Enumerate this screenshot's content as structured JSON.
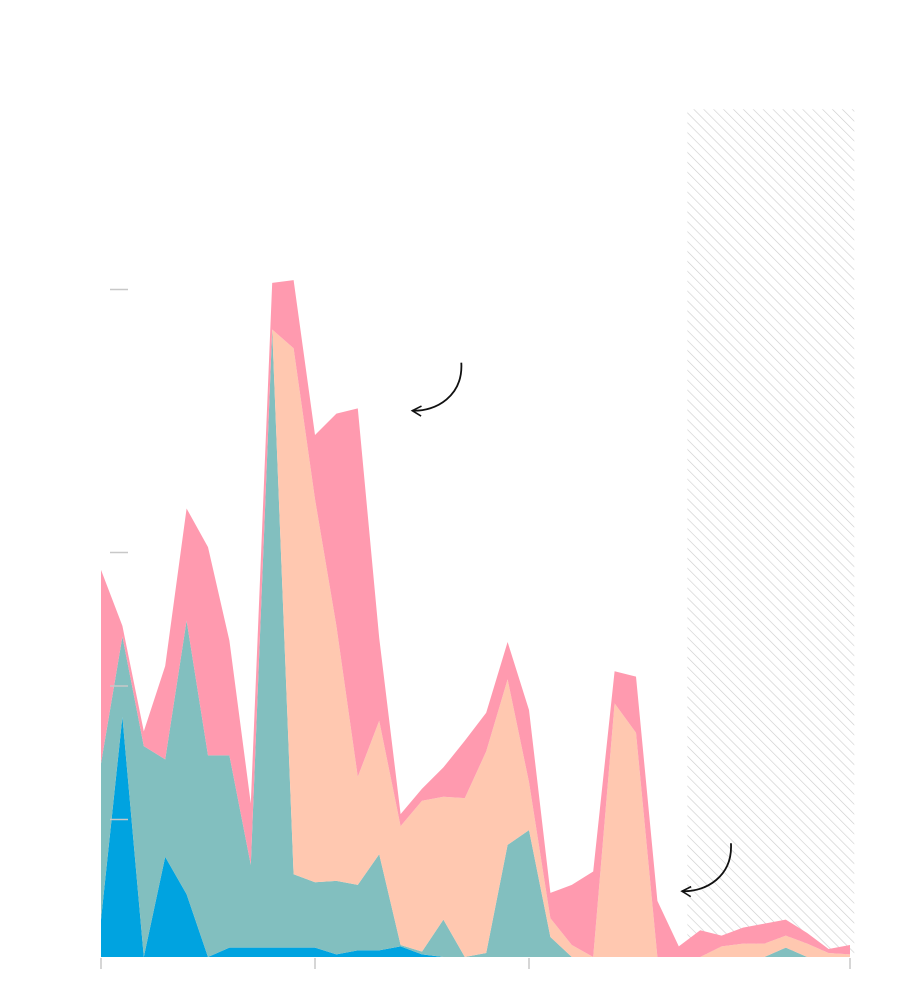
{
  "colors": {
    "background": "#ffffff",
    "tick": "#c8c8c8",
    "hatch": "#cccccc",
    "arrow": "#111111"
  },
  "chart_data": {
    "type": "area",
    "stacked": true,
    "title": "",
    "xlabel": "",
    "ylabel": "",
    "grid": false,
    "legend": "none",
    "x": [
      0,
      1,
      2,
      3,
      4,
      5,
      6,
      7,
      8,
      9,
      10,
      11,
      12,
      13,
      14,
      15,
      16,
      17,
      18,
      19,
      20,
      21,
      22,
      23,
      24,
      25,
      26,
      27,
      28,
      29,
      30,
      31,
      32,
      33,
      34,
      35
    ],
    "xlim": [
      0,
      35
    ],
    "ylim": [
      0,
      6.2
    ],
    "xticks": [
      0,
      10,
      20,
      35
    ],
    "yticks": [
      1.03,
      2.03,
      3.03,
      5.0
    ],
    "series": [
      {
        "color": "#00a3e0",
        "values": [
          0.28,
          1.8,
          0,
          0.75,
          0.47,
          0,
          0.07,
          0.07,
          0.07,
          0.07,
          0.07,
          0.02,
          0.05,
          0.05,
          0.08,
          0.02,
          0,
          0,
          0,
          0,
          0,
          0,
          0,
          0,
          0,
          0,
          0,
          0,
          0,
          0,
          0,
          0,
          0,
          0,
          0,
          0
        ]
      },
      {
        "color": "#82bfbf",
        "values": [
          1.17,
          0.6,
          1.58,
          0.73,
          2.05,
          1.51,
          1.44,
          0.62,
          4.63,
          0.55,
          0.49,
          0.55,
          0.49,
          0.72,
          0.01,
          0.02,
          0.28,
          0,
          0.03,
          0.84,
          0.95,
          0.15,
          0,
          0,
          0,
          0,
          0,
          0,
          0,
          0,
          0,
          0,
          0.07,
          0,
          0,
          0
        ]
      },
      {
        "color": "#ffc8b0",
        "values": [
          0,
          0,
          0,
          0,
          0,
          0,
          0,
          0,
          0,
          3.94,
          2.87,
          1.91,
          0.81,
          1.0,
          0.89,
          1.13,
          0.92,
          1.19,
          1.51,
          1.24,
          0.36,
          0.14,
          0.09,
          0,
          1.9,
          1.68,
          0,
          0,
          0,
          0.08,
          0.1,
          0.1,
          0.09,
          0.1,
          0.03,
          0.02
        ]
      },
      {
        "color": "#ff9aaf",
        "values": [
          1.45,
          0.08,
          0.11,
          0.7,
          0.84,
          1.56,
          0.86,
          0.46,
          0.35,
          0.51,
          0.48,
          1.59,
          2.76,
          0.62,
          0.09,
          0.09,
          0.22,
          0.43,
          0.29,
          0.28,
          0.54,
          0.19,
          0.45,
          0.64,
          0.24,
          0.42,
          0.42,
          0.08,
          0.2,
          0.08,
          0.12,
          0.15,
          0.12,
          0.08,
          0.03,
          0.07
        ]
      }
    ],
    "shaded_region": {
      "x_start": 27.4,
      "x_end": 35.2,
      "pattern": "diagonal-hatch"
    },
    "annotations": [
      {
        "type": "curved-arrow",
        "target_x": 14.5,
        "target_y": 4.1
      },
      {
        "type": "curved-arrow",
        "target_x": 27.1,
        "target_y": 0.5
      }
    ]
  }
}
